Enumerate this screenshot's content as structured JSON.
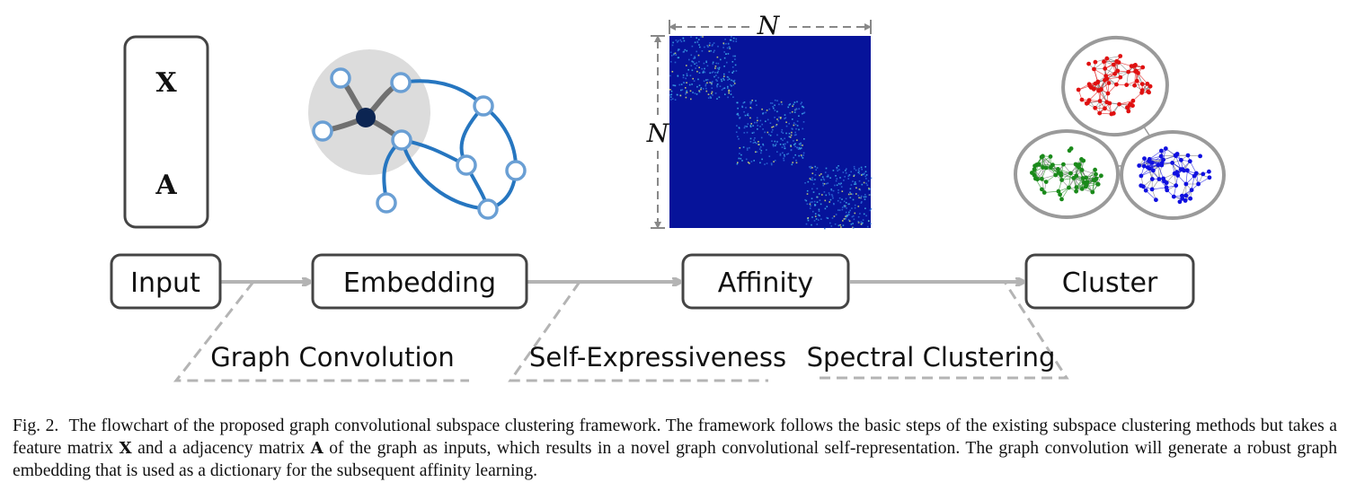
{
  "stages": [
    {
      "id": "input",
      "label": "Input"
    },
    {
      "id": "embedding",
      "label": "Embedding"
    },
    {
      "id": "affinity",
      "label": "Affinity"
    },
    {
      "id": "cluster",
      "label": "Cluster"
    }
  ],
  "steps": [
    {
      "id": "graph-convolution",
      "label": "Graph Convolution"
    },
    {
      "id": "self-expressiveness",
      "label": "Self-Expressiveness"
    },
    {
      "id": "spectral-clustering",
      "label": "Spectral Clustering"
    }
  ],
  "input_matrices": {
    "feature": "X",
    "adjacency": "A"
  },
  "affinity_matrix": {
    "width_label": "N",
    "height_label": "N",
    "blocks": 3
  },
  "clusters": [
    {
      "name": "red",
      "color": "#e01010"
    },
    {
      "name": "green",
      "color": "#1a8a1a"
    },
    {
      "name": "blue",
      "color": "#1010e0"
    }
  ],
  "colors": {
    "arrow": "#b4b4b4",
    "matrix_bg": "#06139a",
    "node_stroke": "#6a9fd4",
    "edge_blue": "#2676c0",
    "center_node": "#0c2552"
  },
  "caption": {
    "prefix": "Fig. 2.",
    "part1": "The flowchart of the proposed graph convolutional subspace clustering framework. The framework follows the basic steps of the existing subspace clustering methods but takes a feature matrix ",
    "var_x": "X",
    "part2": " and a adjacency matrix ",
    "var_a": "A",
    "part3": " of the graph as inputs, which results in a novel graph convolutional self-representation. The graph convolution will generate a robust graph embedding that is used as a dictionary for the subsequent affinity learning."
  }
}
